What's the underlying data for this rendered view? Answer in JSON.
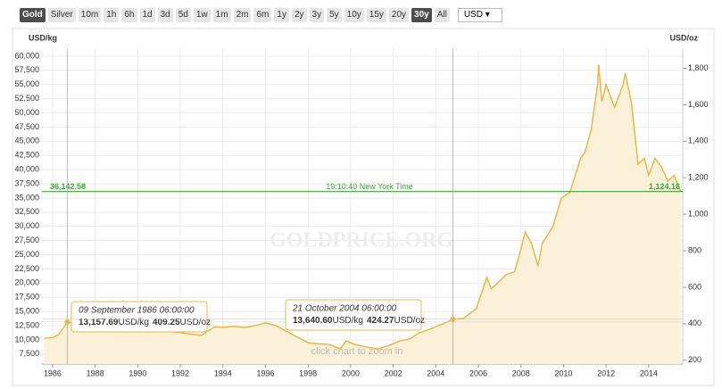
{
  "toolbar": {
    "buttons": [
      {
        "label": "Gold",
        "active": true
      },
      {
        "label": "Silver",
        "active": false
      },
      {
        "label": "10m",
        "active": false
      },
      {
        "label": "1h",
        "active": false
      },
      {
        "label": "6h",
        "active": false
      },
      {
        "label": "1d",
        "active": false
      },
      {
        "label": "3d",
        "active": false
      },
      {
        "label": "5d",
        "active": false
      },
      {
        "label": "1w",
        "active": false
      },
      {
        "label": "1m",
        "active": false
      },
      {
        "label": "2m",
        "active": false
      },
      {
        "label": "6m",
        "active": false
      },
      {
        "label": "1y",
        "active": false
      },
      {
        "label": "2y",
        "active": false
      },
      {
        "label": "3y",
        "active": false
      },
      {
        "label": "5y",
        "active": false
      },
      {
        "label": "10y",
        "active": false
      },
      {
        "label": "15y",
        "active": false
      },
      {
        "label": "20y",
        "active": false
      },
      {
        "label": "30y",
        "active": true
      },
      {
        "label": "All",
        "active": false
      }
    ],
    "currency": "USD ▾"
  },
  "chart_data": {
    "type": "area",
    "ylabel": "USD/kg",
    "y2label": "USD/oz",
    "watermark": "GOLDPRICE.ORG",
    "hint": "click chart to zoom in",
    "color": "#e8b84a",
    "fill": "#fbf1d9",
    "grid": true,
    "xlim": [
      1985.5,
      2015.6
    ],
    "xticks": [
      1986,
      1988,
      1990,
      1992,
      1994,
      1996,
      1998,
      2000,
      2002,
      2004,
      2006,
      2008,
      2010,
      2012,
      2014
    ],
    "ylim": [
      5750,
      61250
    ],
    "yticks": [
      {
        "value": 7500,
        "label": "7,500"
      },
      {
        "value": 10000,
        "label": "10,000"
      },
      {
        "value": 12500,
        "label": "12,500"
      },
      {
        "value": 15000,
        "label": "15,000"
      },
      {
        "value": 17500,
        "label": "17,500"
      },
      {
        "value": 20000,
        "label": "20,000"
      },
      {
        "value": 22500,
        "label": "22,500"
      },
      {
        "value": 25000,
        "label": "25,000"
      },
      {
        "value": 27500,
        "label": "27,500"
      },
      {
        "value": 30000,
        "label": "30,000"
      },
      {
        "value": 32500,
        "label": "32,500"
      },
      {
        "value": 35000,
        "label": "35,000"
      },
      {
        "value": 37500,
        "label": "37,500"
      },
      {
        "value": 40000,
        "label": "40,000"
      },
      {
        "value": 42500,
        "label": "42,500"
      },
      {
        "value": 45000,
        "label": "45,000"
      },
      {
        "value": 47500,
        "label": "47,500"
      },
      {
        "value": 50000,
        "label": "50,000"
      },
      {
        "value": 52500,
        "label": "52,500"
      },
      {
        "value": 55000,
        "label": "55,000"
      },
      {
        "value": 57500,
        "label": "57,500"
      },
      {
        "value": 60000,
        "label": "60,000"
      }
    ],
    "y2lim": [
      179,
      1905
    ],
    "y2ticks": [
      200,
      400,
      600,
      800,
      {
        "value": 1000,
        "label": "1,000"
      },
      {
        "value": 1200,
        "label": "1,200"
      },
      {
        "value": 1400,
        "label": "1,400"
      },
      {
        "value": 1600,
        "label": "1,600"
      },
      {
        "value": 1800,
        "label": "1,800"
      }
    ],
    "x": [
      1985.6,
      1986.0,
      1986.3,
      1986.7,
      1987.0,
      1987.3,
      1987.9,
      1988.3,
      1988.9,
      1989.3,
      1989.8,
      1990.1,
      1990.5,
      1991.0,
      1991.5,
      1992.0,
      1992.5,
      1993.0,
      1993.6,
      1994.0,
      1994.5,
      1995.0,
      1995.5,
      1996.0,
      1996.5,
      1997.0,
      1997.5,
      1998.0,
      1998.5,
      1999.0,
      1999.5,
      1999.8,
      2000.2,
      2000.8,
      2001.3,
      2001.8,
      2002.3,
      2002.8,
      2003.2,
      2003.8,
      2004.3,
      2004.8,
      2005.3,
      2005.9,
      2006.4,
      2006.6,
      2006.9,
      2007.3,
      2007.7,
      2008.0,
      2008.2,
      2008.5,
      2008.8,
      2009.0,
      2009.5,
      2009.9,
      2010.3,
      2010.8,
      2011.0,
      2011.3,
      2011.6,
      2011.65,
      2011.8,
      2012.0,
      2012.4,
      2012.8,
      2012.9,
      2013.2,
      2013.5,
      2013.8,
      2014.0,
      2014.3,
      2014.6,
      2014.9,
      2015.2,
      2015.5
    ],
    "values": [
      10300,
      10400,
      11000,
      13158,
      13000,
      14000,
      15000,
      14000,
      13000,
      12000,
      11800,
      13500,
      11800,
      12000,
      11500,
      11300,
      11000,
      10800,
      12300,
      12200,
      12400,
      12200,
      12500,
      13000,
      12500,
      11500,
      10500,
      9500,
      9300,
      9200,
      8400,
      9800,
      9200,
      8700,
      8400,
      9000,
      9800,
      10200,
      11200,
      12000,
      12800,
      13641,
      13800,
      15500,
      21000,
      19000,
      20000,
      21500,
      22000,
      26000,
      29000,
      27000,
      23000,
      27000,
      30000,
      35000,
      36000,
      42000,
      43000,
      47000,
      55000,
      58500,
      52000,
      55000,
      51000,
      55000,
      57000,
      51500,
      41000,
      42000,
      39000,
      42000,
      40500,
      38000,
      39000,
      36143
    ],
    "current_price": {
      "value": 36142.58,
      "label": "36,142.58"
    },
    "current_price_oz": {
      "value": 1124.16,
      "label": "1,124.16"
    },
    "current_time": "19:10:40 New York Time",
    "line_color": "#3aaa35",
    "tooltips": [
      {
        "date": "09 September 1986 06:00:00",
        "kg": {
          "value": 13157.69,
          "label": "13,157.69"
        },
        "oz": 409.25
      },
      {
        "date": "21 October 2004 06:00:00",
        "kg": {
          "value": 13640.6,
          "label": "13,640.60"
        },
        "oz": 424.27
      }
    ]
  }
}
